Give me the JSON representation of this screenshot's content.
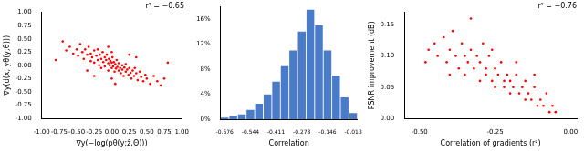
{
  "chart_data": [
    {
      "type": "scatter",
      "annotation": "r² = −0.65",
      "x_label": "∇y(−log(pθ(y;ẑ,Θ)))",
      "y_label": "∇y(d(x, yθ(y;θ)))",
      "color": "#ff0000",
      "marker": "circle",
      "grid": false,
      "xlim": [
        -1,
        1
      ],
      "xticks": [
        {
          "value": -1,
          "label": "-1.00"
        },
        {
          "value": -0.75,
          "label": "-0.75"
        },
        {
          "value": -0.5,
          "label": "-0.50"
        },
        {
          "value": -0.25,
          "label": "-0.25"
        },
        {
          "value": 0,
          "label": "0.00"
        },
        {
          "value": 0.25,
          "label": "0.25"
        },
        {
          "value": 0.5,
          "label": "0.50"
        },
        {
          "value": 0.75,
          "label": "0.75"
        },
        {
          "value": 1,
          "label": "1.00"
        }
      ],
      "ylim": [
        -1,
        1
      ],
      "yticks": [
        {
          "value": -1,
          "label": "-1.00"
        },
        {
          "value": -0.75,
          "label": "-0.75"
        },
        {
          "value": -0.5,
          "label": "-0.50"
        },
        {
          "value": -0.25,
          "label": "-0.25"
        },
        {
          "value": 0,
          "label": "0.00"
        },
        {
          "value": 0.25,
          "label": "0.25"
        },
        {
          "value": 0.5,
          "label": "0.50"
        },
        {
          "value": 0.75,
          "label": "0.75"
        },
        {
          "value": 1,
          "label": "1.00"
        }
      ],
      "x": [
        -0.6,
        -0.55,
        -0.5,
        -0.48,
        -0.45,
        -0.42,
        -0.4,
        -0.38,
        -0.35,
        -0.33,
        -0.3,
        -0.3,
        -0.28,
        -0.25,
        -0.25,
        -0.22,
        -0.2,
        -0.2,
        -0.18,
        -0.17,
        -0.15,
        -0.15,
        -0.13,
        -0.12,
        -0.1,
        -0.1,
        -0.08,
        -0.07,
        -0.05,
        -0.05,
        -0.04,
        -0.03,
        -0.02,
        0,
        0,
        0.01,
        0.02,
        0.03,
        0.04,
        0.05,
        0.06,
        0.07,
        0.08,
        0.1,
        0.1,
        0.12,
        0.13,
        0.15,
        0.15,
        0.17,
        0.18,
        0.2,
        0.2,
        0.22,
        0.24,
        0.25,
        0.27,
        0.28,
        0.3,
        0.32,
        0.33,
        0.35,
        0.37,
        0.4,
        0.42,
        0.45,
        0.48,
        0.5,
        0.55,
        0.6,
        0.65,
        0.7,
        -0.7,
        -0.65,
        0.75,
        -0.8,
        0.8,
        -0.35,
        0.35,
        -0.05,
        0.05,
        -0.25,
        0.25,
        0,
        0
      ],
      "values": [
        0.35,
        0.22,
        0.3,
        0.18,
        0.4,
        0.25,
        0.12,
        0.3,
        0.2,
        0.35,
        0.08,
        0.22,
        0.15,
        0.28,
        0.05,
        0.18,
        0.1,
        0.3,
        0,
        0.2,
        0.12,
        -0.05,
        0.25,
        0.06,
        0.15,
        -0.02,
        0.1,
        0.2,
        0.04,
        -0.1,
        0.12,
        0,
        0.08,
        0.05,
        -0.05,
        0.15,
        -0.02,
        0.06,
        -0.12,
        0.02,
        -0.06,
        0.1,
        -0.03,
        -0.1,
        0.04,
        -0.05,
        -0.15,
        0,
        -0.08,
        -0.2,
        -0.04,
        -0.12,
        0.02,
        -0.08,
        -0.18,
        -0.05,
        -0.14,
        -0.25,
        -0.1,
        -0.2,
        -0.05,
        -0.15,
        -0.28,
        -0.12,
        -0.22,
        -0.3,
        -0.18,
        -0.25,
        -0.35,
        -0.2,
        -0.3,
        -0.38,
        0.45,
        0.28,
        -0.25,
        0.1,
        0.05,
        -0.1,
        0.15,
        0.35,
        -0.35,
        -0.2,
        0.2,
        0.25,
        -0.25
      ]
    },
    {
      "type": "bar",
      "x_label": "Correlation",
      "color": "#4a7bc8",
      "grid": false,
      "categories": [
        "-0.676",
        null,
        null,
        "-0.544",
        null,
        null,
        "-0.411",
        null,
        null,
        "-0.278",
        null,
        null,
        "-0.146",
        null,
        null,
        "-0.013"
      ],
      "values": [
        0.3,
        0.5,
        0.8,
        1.5,
        2.5,
        4,
        6,
        8.5,
        11,
        14,
        17.5,
        15,
        11,
        7,
        3.5,
        1
      ],
      "ylim": [
        0,
        18
      ],
      "yticks": [
        {
          "value": 0,
          "label": "0%"
        },
        {
          "value": 4,
          "label": "4%"
        },
        {
          "value": 8,
          "label": "8%"
        },
        {
          "value": 12,
          "label": "12%"
        },
        {
          "value": 16,
          "label": "16%"
        }
      ]
    },
    {
      "type": "scatter",
      "annotation": "r² = −0.76",
      "x_label": "Correlation of gradients (r²)",
      "y_label": "PSNR improvement (dB)",
      "color": "#ff0000",
      "marker": "circle",
      "grid": false,
      "xlim": [
        -0.55,
        0.02
      ],
      "xticks": [
        {
          "value": -0.5,
          "label": "-0.50"
        },
        {
          "value": -0.25,
          "label": "-0.25"
        },
        {
          "value": 0,
          "label": "0.00"
        }
      ],
      "ylim": [
        0,
        0.17
      ],
      "yticks": [
        {
          "value": 0,
          "label": "0.00"
        },
        {
          "value": 0.05,
          "label": "0.05"
        },
        {
          "value": 0.1,
          "label": "0.10"
        },
        {
          "value": 0.15,
          "label": "0.15"
        }
      ],
      "x": [
        -0.47,
        -0.45,
        -0.44,
        -0.42,
        -0.41,
        -0.4,
        -0.39,
        -0.38,
        -0.37,
        -0.36,
        -0.35,
        -0.35,
        -0.34,
        -0.33,
        -0.32,
        -0.31,
        -0.3,
        -0.3,
        -0.29,
        -0.28,
        -0.28,
        -0.27,
        -0.26,
        -0.25,
        -0.25,
        -0.24,
        -0.23,
        -0.22,
        -0.22,
        -0.21,
        -0.2,
        -0.2,
        -0.19,
        -0.18,
        -0.17,
        -0.16,
        -0.15,
        -0.15,
        -0.14,
        -0.13,
        -0.12,
        -0.11,
        -0.1,
        -0.09,
        -0.08,
        -0.07,
        -0.06,
        -0.05,
        -0.33,
        -0.4,
        -0.48,
        -0.26,
        -0.18,
        -0.12
      ],
      "values": [
        0.11,
        0.12,
        0.1,
        0.13,
        0.09,
        0.11,
        0.14,
        0.1,
        0.08,
        0.12,
        0.1,
        0.07,
        0.09,
        0.11,
        0.08,
        0.1,
        0.06,
        0.09,
        0.12,
        0.07,
        0.08,
        0.1,
        0.06,
        0.08,
        0.05,
        0.07,
        0.09,
        0.05,
        0.06,
        0.07,
        0.04,
        0.06,
        0.05,
        0.07,
        0.04,
        0.05,
        0.03,
        0.06,
        0.04,
        0.03,
        0.05,
        0.02,
        0.03,
        0.02,
        0.04,
        0.01,
        0.02,
        0.01,
        0.16,
        0.07,
        0.09,
        0.11,
        0.09,
        0.07
      ]
    }
  ]
}
